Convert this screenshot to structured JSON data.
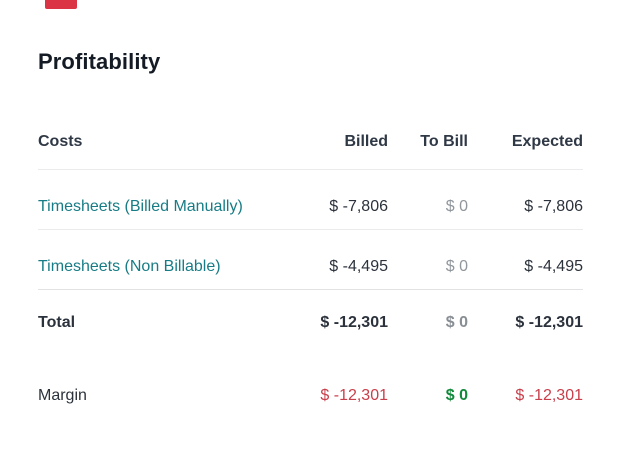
{
  "page": {
    "title": "Profitability"
  },
  "colors": {
    "link_teal": "#177C85",
    "negative_red": "#C83E4A",
    "positive_green": "#11893A",
    "muted_gray": "#8F969C",
    "title_text": "#141B24",
    "header_text": "#2F3845",
    "value_text": "#2B323C",
    "divider": "#EBEBED",
    "top_red_element": "#DB3445"
  },
  "table": {
    "columns": [
      {
        "key": "costs",
        "label": "Costs",
        "align": "left"
      },
      {
        "key": "billed",
        "label": "Billed",
        "align": "right"
      },
      {
        "key": "to_bill",
        "label": "To Bill",
        "align": "right"
      },
      {
        "key": "expected",
        "label": "Expected",
        "align": "right"
      }
    ],
    "rows": [
      {
        "costs": "Timesheets (Billed Manually)",
        "billed": "$ -7,806",
        "to_bill": "$ 0",
        "expected": "$ -7,806",
        "costs_is_link": true
      },
      {
        "costs": "Timesheets (Non Billable)",
        "billed": "$ -4,495",
        "to_bill": "$ 0",
        "expected": "$ -4,495",
        "costs_is_link": true
      },
      {
        "costs": "Total",
        "billed": "$ -12,301",
        "to_bill": "$ 0",
        "expected": "$ -12,301",
        "bold": true
      },
      {
        "costs": "Margin",
        "billed": "$ -12,301",
        "to_bill": "$ 0",
        "expected": "$ -12,301",
        "billed_tone": "negative",
        "to_bill_tone": "positive",
        "expected_tone": "negative"
      }
    ]
  }
}
